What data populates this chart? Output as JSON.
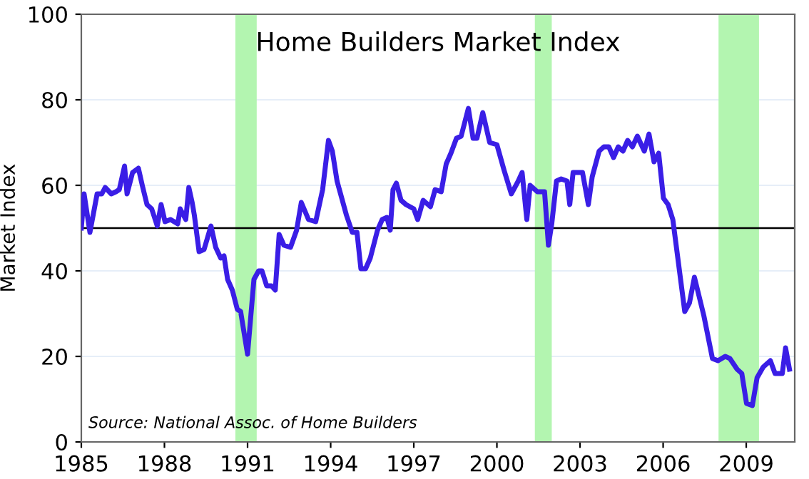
{
  "chart_data": {
    "type": "line",
    "title": "Home Builders Market Index",
    "ylabel": "Market Index",
    "annotations": [
      "Source: National Assoc. of Home Builders"
    ],
    "x": [
      1985.0,
      1985.1,
      1985.31,
      1985.57,
      1985.74,
      1985.86,
      1986.08,
      1986.25,
      1986.37,
      1986.56,
      1986.65,
      1986.85,
      1987.06,
      1987.2,
      1987.37,
      1987.54,
      1987.74,
      1987.88,
      1988.02,
      1988.22,
      1988.48,
      1988.57,
      1988.77,
      1988.88,
      1989.0,
      1989.08,
      1989.25,
      1989.43,
      1989.68,
      1989.85,
      1990.03,
      1990.15,
      1990.28,
      1990.45,
      1990.63,
      1990.75,
      1991.0,
      1991.23,
      1991.4,
      1991.52,
      1991.69,
      1991.86,
      1992.0,
      1992.14,
      1992.31,
      1992.55,
      1992.77,
      1992.94,
      1993.2,
      1993.46,
      1993.71,
      1993.92,
      1994.06,
      1994.23,
      1994.57,
      1994.78,
      1994.95,
      1995.09,
      1995.26,
      1995.43,
      1995.69,
      1995.86,
      1996.03,
      1996.15,
      1996.25,
      1996.37,
      1996.54,
      1996.72,
      1997.0,
      1997.14,
      1997.34,
      1997.6,
      1997.77,
      1997.99,
      1998.17,
      1998.34,
      1998.54,
      1998.71,
      1998.97,
      1999.14,
      1999.28,
      1999.49,
      1999.74,
      2000.0,
      2000.26,
      2000.52,
      2000.77,
      2000.91,
      2001.08,
      2001.2,
      2001.46,
      2001.72,
      2001.86,
      2001.98,
      2002.15,
      2002.32,
      2002.53,
      2002.63,
      2002.75,
      2002.92,
      2003.09,
      2003.3,
      2003.44,
      2003.69,
      2003.86,
      2004.04,
      2004.21,
      2004.38,
      2004.55,
      2004.72,
      2004.89,
      2005.07,
      2005.32,
      2005.49,
      2005.67,
      2005.84,
      2006.01,
      2006.18,
      2006.35,
      2006.78,
      2006.95,
      2007.13,
      2007.47,
      2007.78,
      2007.98,
      2008.24,
      2008.41,
      2008.67,
      2008.84,
      2009.01,
      2009.22,
      2009.39,
      2009.61,
      2009.87,
      2010.04,
      2010.3,
      2010.42,
      2010.56
    ],
    "series": [
      {
        "color": "#3a1ee6",
        "values": [
          50,
          58,
          49,
          58,
          58,
          59.5,
          58,
          58.5,
          59,
          64.5,
          58,
          63,
          64,
          60,
          55.5,
          54.5,
          50.5,
          55.5,
          51.5,
          52,
          51,
          54.5,
          52,
          59.5,
          56,
          53,
          44.5,
          45,
          50.5,
          45.5,
          43,
          43.5,
          38,
          35.5,
          31,
          30.5,
          20.5,
          38,
          40,
          40,
          36.5,
          36.5,
          35.5,
          48.5,
          46,
          45.5,
          49.5,
          56,
          52,
          51.5,
          59,
          70.5,
          68,
          61,
          53,
          49,
          49,
          40.5,
          40.5,
          43,
          49.5,
          52,
          52.5,
          49.5,
          59,
          60.5,
          56.5,
          55.5,
          54.5,
          52,
          56.5,
          55,
          59,
          58.5,
          65,
          67.5,
          71,
          71.5,
          78,
          71,
          71,
          77,
          70,
          69.5,
          63.5,
          58,
          61,
          63,
          52,
          60,
          58.5,
          58.5,
          46,
          51,
          61,
          61.5,
          61,
          55.5,
          63,
          63,
          63,
          55.5,
          62,
          68,
          69,
          69,
          66.5,
          69,
          68,
          70.5,
          69,
          71.5,
          68,
          72,
          65.5,
          67.5,
          57,
          55.5,
          52,
          30.5,
          32.5,
          38.5,
          29.5,
          19.5,
          19,
          20,
          19.5,
          17,
          16,
          9,
          8.5,
          15,
          17.5,
          19,
          16,
          16,
          22,
          17
        ]
      }
    ],
    "xlim": [
      1985,
      2010.75
    ],
    "xticks": [
      1985,
      1988,
      1991,
      1994,
      1997,
      2000,
      2003,
      2006,
      2009
    ],
    "ylim": [
      0,
      100
    ],
    "yticks": [
      0,
      20,
      40,
      60,
      80,
      100
    ],
    "grid": "y",
    "ref_lines": [
      {
        "axis": "y",
        "value": 50,
        "color": "#000000"
      }
    ],
    "bands": [
      {
        "axis": "x",
        "from": 1990.56,
        "to": 1991.33,
        "color": "#b3f5b0"
      },
      {
        "axis": "x",
        "from": 2001.37,
        "to": 2001.98,
        "color": "#b3f5b0"
      },
      {
        "axis": "x",
        "from": 2008.0,
        "to": 2009.46,
        "color": "#b3f5b0"
      }
    ]
  }
}
